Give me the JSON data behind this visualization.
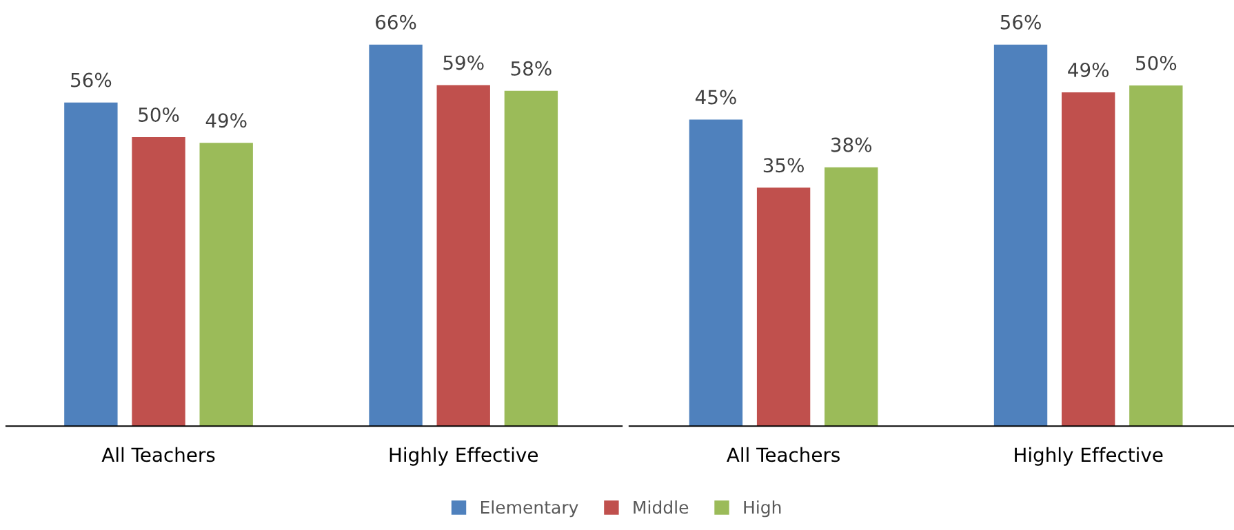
{
  "chart_data": [
    {
      "type": "bar",
      "categories": [
        "All Teachers",
        "Highly Effective"
      ],
      "legend": "bottom",
      "grid": false,
      "series": [
        {
          "name": "Elementary",
          "color": "#4f81bd",
          "values": [
            56,
            66
          ],
          "value_labels": [
            "56%",
            "66%"
          ]
        },
        {
          "name": "Middle",
          "color": "#c0504d",
          "values": [
            50,
            59
          ],
          "value_labels": [
            "50%",
            "59%"
          ]
        },
        {
          "name": "High",
          "color": "#9bbb59",
          "values": [
            49,
            58
          ],
          "value_labels": [
            "49%",
            "58%"
          ]
        }
      ]
    },
    {
      "type": "bar",
      "categories": [
        "All Teachers",
        "Highly Effective"
      ],
      "grid": false,
      "series": [
        {
          "color": "#4f81bd",
          "values": [
            45,
            56
          ],
          "value_labels": [
            "45%",
            "56%"
          ]
        },
        {
          "color": "#c0504d",
          "values": [
            35,
            49
          ],
          "value_labels": [
            "35%",
            "49%"
          ]
        },
        {
          "color": "#9bbb59",
          "values": [
            38,
            50
          ],
          "value_labels": [
            "38%",
            "50%"
          ]
        }
      ]
    }
  ]
}
